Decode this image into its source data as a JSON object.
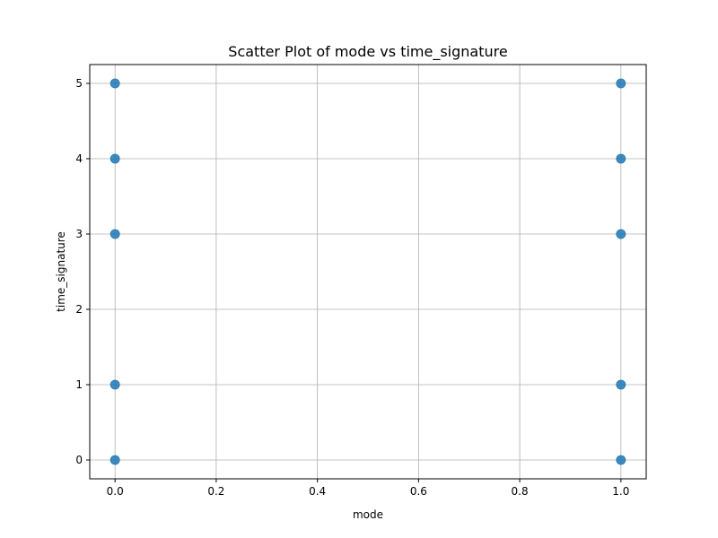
{
  "chart_data": {
    "type": "scatter",
    "title": "Scatter Plot of mode vs time_signature",
    "xlabel": "mode",
    "ylabel": "time_signature",
    "xlim": [
      -0.05,
      1.05
    ],
    "ylim": [
      -0.25,
      5.25
    ],
    "xticks": [
      0.0,
      0.2,
      0.4,
      0.6,
      0.8,
      1.0
    ],
    "xtick_labels": [
      "0.0",
      "0.2",
      "0.4",
      "0.6",
      "0.8",
      "1.0"
    ],
    "yticks": [
      0,
      1,
      2,
      3,
      4,
      5
    ],
    "ytick_labels": [
      "0",
      "1",
      "2",
      "3",
      "4",
      "5"
    ],
    "grid": true,
    "marker_color": "#1f77b4",
    "points": [
      {
        "x": 0,
        "y": 0
      },
      {
        "x": 0,
        "y": 1
      },
      {
        "x": 0,
        "y": 3
      },
      {
        "x": 0,
        "y": 4
      },
      {
        "x": 0,
        "y": 5
      },
      {
        "x": 1,
        "y": 0
      },
      {
        "x": 1,
        "y": 1
      },
      {
        "x": 1,
        "y": 3
      },
      {
        "x": 1,
        "y": 4
      },
      {
        "x": 1,
        "y": 5
      }
    ]
  }
}
